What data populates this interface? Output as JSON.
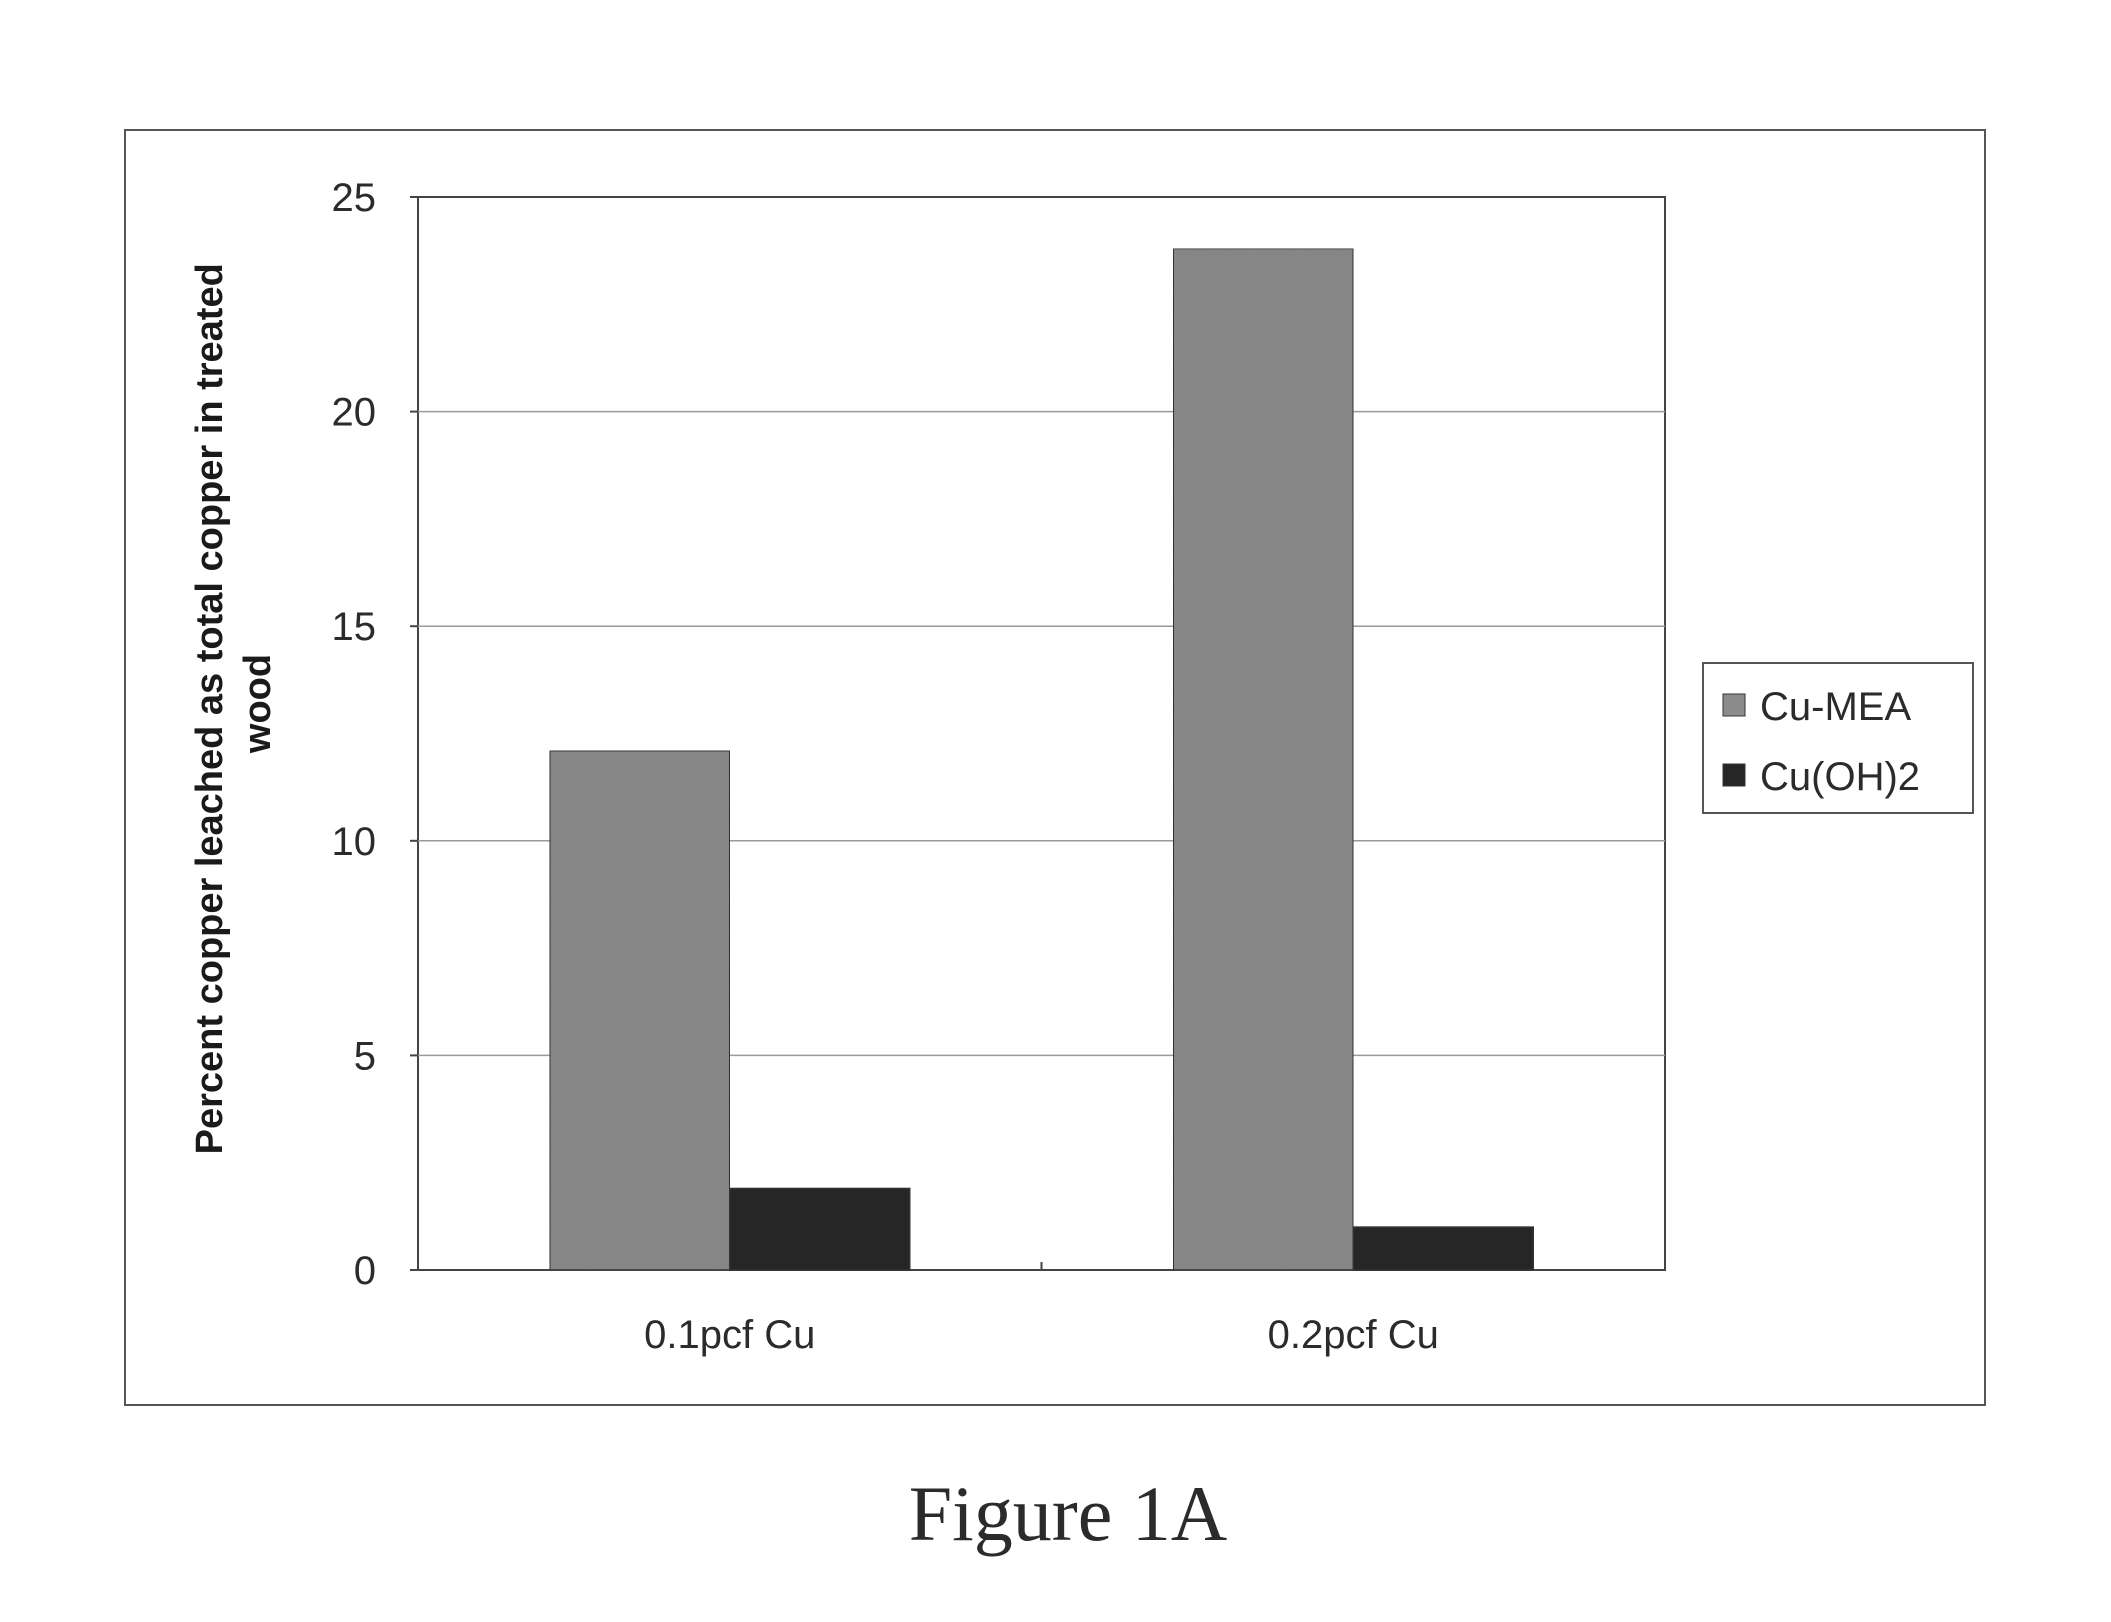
{
  "chart_data": {
    "type": "bar",
    "categories": [
      "0.1pcf Cu",
      "0.2pcf Cu"
    ],
    "series": [
      {
        "name": "Cu-MEA",
        "values": [
          12.1,
          23.8
        ],
        "color": "#8c8c8c"
      },
      {
        "name": "Cu(OH)2",
        "values": [
          1.9,
          1.0
        ],
        "color": "#262626"
      }
    ],
    "ylabel": "Percent copper leached as total copper in treated wood",
    "ylim": [
      0,
      25
    ],
    "yticks": [
      0,
      5,
      10,
      15,
      20,
      25
    ],
    "grid": true,
    "legend": "right"
  },
  "caption": "Figure 1A"
}
